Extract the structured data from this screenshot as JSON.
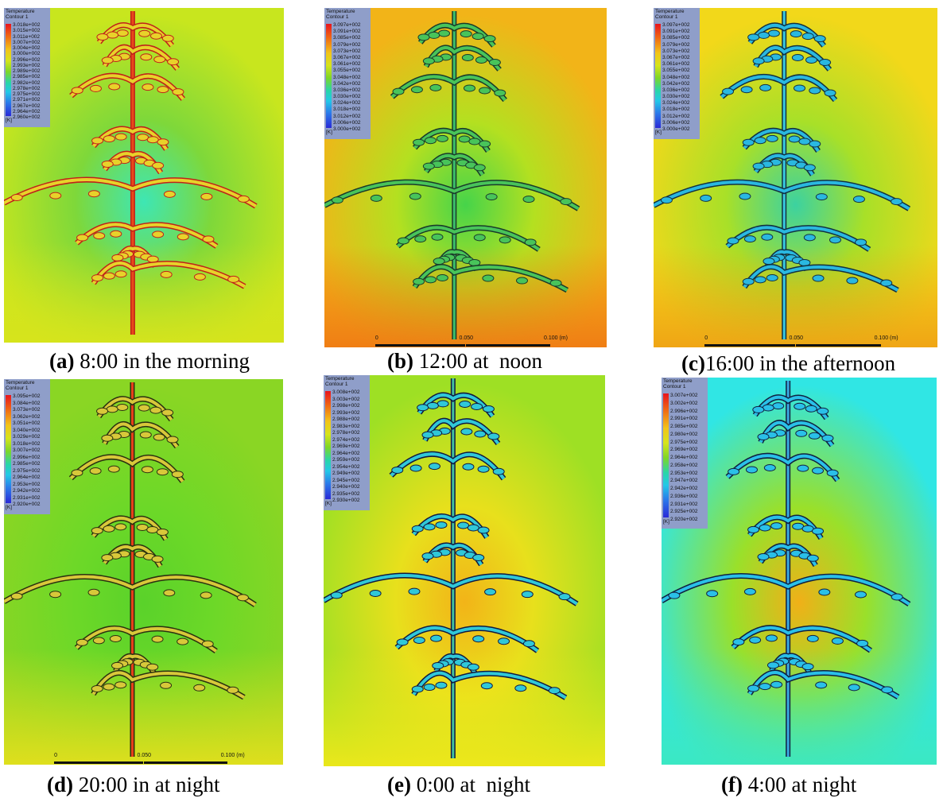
{
  "legend_title": "Temperature",
  "legend_subtitle": "Contour 1",
  "legend_unit": "[K]",
  "panels": [
    {
      "id": "a",
      "letter": "(a)",
      "caption": "8:00 in the morning",
      "ticks": [
        "3.018e+002",
        "3.015e+002",
        "3.011e+002",
        "3.007e+002",
        "3.004e+002",
        "3.000e+002",
        "2.996e+002",
        "2.993e+002",
        "2.989e+002",
        "2.985e+002",
        "2.982e+002",
        "2.978e+002",
        "2.975e+002",
        "2.971e+002",
        "2.967e+002",
        "2.964e+002",
        "2.960e+002"
      ],
      "scale": []
    },
    {
      "id": "b",
      "letter": "(b)",
      "caption": "12:00 at  noon",
      "ticks": [
        "3.097e+002",
        "3.091e+002",
        "3.085e+002",
        "3.079e+002",
        "3.073e+002",
        "3.067e+002",
        "3.061e+002",
        "3.055e+002",
        "3.048e+002",
        "3.042e+002",
        "3.036e+002",
        "3.030e+002",
        "3.024e+002",
        "3.018e+002",
        "3.012e+002",
        "3.006e+002",
        "3.000e+002"
      ],
      "scale": [
        "0",
        "0.050",
        "0.100  (m)"
      ]
    },
    {
      "id": "c",
      "letter": "(c)",
      "caption": "16:00 in the afternoon",
      "ticks": [
        "3.097e+002",
        "3.091e+002",
        "3.085e+002",
        "3.079e+002",
        "3.073e+002",
        "3.067e+002",
        "3.061e+002",
        "3.055e+002",
        "3.048e+002",
        "3.042e+002",
        "3.036e+002",
        "3.030e+002",
        "3.024e+002",
        "3.018e+002",
        "3.012e+002",
        "3.006e+002",
        "3.000e+002"
      ],
      "scale": [
        "0",
        "0.050",
        "0.100  (m)"
      ]
    },
    {
      "id": "d",
      "letter": "(d)",
      "caption": "20:00 in at night",
      "ticks": [
        "3.095e+002",
        "3.084e+002",
        "3.073e+002",
        "3.062e+002",
        "3.051e+002",
        "3.040e+002",
        "3.029e+002",
        "3.018e+002",
        "3.007e+002",
        "2.996e+002",
        "2.985e+002",
        "2.975e+002",
        "2.964e+002",
        "2.953e+002",
        "2.942e+002",
        "2.931e+002",
        "2.920e+002"
      ],
      "scale": [
        "0",
        "0.050",
        "0.100  (m)"
      ]
    },
    {
      "id": "e",
      "letter": "(e)",
      "caption": "0:00 at  night",
      "ticks": [
        "3.008e+002",
        "3.003e+002",
        "2.998e+002",
        "2.993e+002",
        "2.988e+002",
        "2.983e+002",
        "2.978e+002",
        "2.974e+002",
        "2.969e+002",
        "2.964e+002",
        "2.959e+002",
        "2.954e+002",
        "2.949e+002",
        "2.945e+002",
        "2.940e+002",
        "2.935e+002",
        "2.930e+002"
      ],
      "scale": []
    },
    {
      "id": "f",
      "letter": "(f)",
      "caption": "4:00 at night",
      "ticks": [
        "3.007e+002",
        "3.002e+002",
        "2.996e+002",
        "2.991e+002",
        "2.985e+002",
        "2.980e+002",
        "2.975e+002",
        "2.969e+002",
        "2.964e+002",
        "2.958e+002",
        "2.953e+002",
        "2.947e+002",
        "2.942e+002",
        "2.936e+002",
        "2.931e+002",
        "2.925e+002",
        "2.920e+002"
      ],
      "scale": []
    }
  ],
  "colors": {
    "field_yellow_green": "#c8e61e",
    "field_orange": "#f08a14",
    "field_green": "#5ad22a",
    "field_cyan": "#30e8e4",
    "field_yellow": "#f2e21a",
    "legend_bg": "#8f9ec9"
  }
}
